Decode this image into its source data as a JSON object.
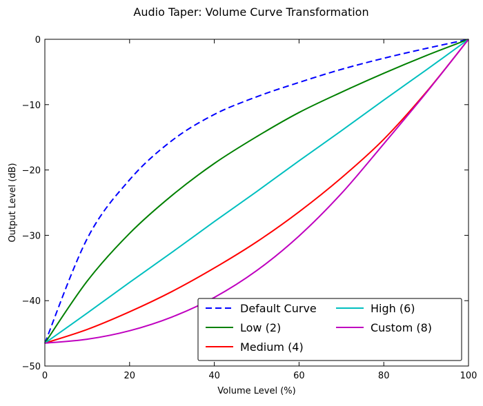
{
  "chart_data": {
    "type": "line",
    "title": "Audio Taper: Volume Curve Transformation",
    "xlabel": "Volume Level (%)",
    "ylabel": "Output Level (dB)",
    "xlim": [
      0,
      100
    ],
    "ylim": [
      -50,
      0
    ],
    "xticks": [
      0,
      20,
      40,
      60,
      80,
      100
    ],
    "yticks": [
      0,
      -10,
      -20,
      -30,
      -40,
      -50
    ],
    "xtick_labels": [
      "0",
      "20",
      "40",
      "60",
      "80",
      "100"
    ],
    "ytick_labels": [
      "0",
      "−10",
      "−20",
      "−30",
      "−40",
      "−50"
    ],
    "grid": false,
    "legend_position": "lower-right",
    "legend_columns": 2,
    "x": [
      0,
      10,
      20,
      30,
      40,
      50,
      60,
      70,
      80,
      90,
      100
    ],
    "series": [
      {
        "name": "Default Curve",
        "color": "#0000ff",
        "dashed": true,
        "values": [
          -46.5,
          -30.5,
          -21.5,
          -15.5,
          -11.5,
          -8.8,
          -6.6,
          -4.6,
          -2.9,
          -1.4,
          0
        ]
      },
      {
        "name": "Low (2)",
        "color": "#008000",
        "dashed": false,
        "values": [
          -46.5,
          -37.0,
          -29.7,
          -23.9,
          -19.0,
          -14.9,
          -11.2,
          -8.1,
          -5.2,
          -2.5,
          0
        ]
      },
      {
        "name": "Medium (4)",
        "color": "#ff0000",
        "dashed": false,
        "values": [
          -46.5,
          -44.4,
          -41.7,
          -38.6,
          -35.0,
          -31.0,
          -26.4,
          -21.2,
          -15.3,
          -8.1,
          0
        ]
      },
      {
        "name": "High (6)",
        "color": "#00bfbf",
        "dashed": false,
        "values": [
          -46.5,
          -41.9,
          -37.2,
          -32.6,
          -27.9,
          -23.3,
          -18.6,
          -14.0,
          -9.3,
          -4.7,
          0
        ]
      },
      {
        "name": "Custom (8)",
        "color": "#bf00bf",
        "dashed": false,
        "values": [
          -46.5,
          -45.9,
          -44.6,
          -42.5,
          -39.5,
          -35.4,
          -30.1,
          -23.6,
          -16.0,
          -8.2,
          0
        ]
      }
    ]
  }
}
